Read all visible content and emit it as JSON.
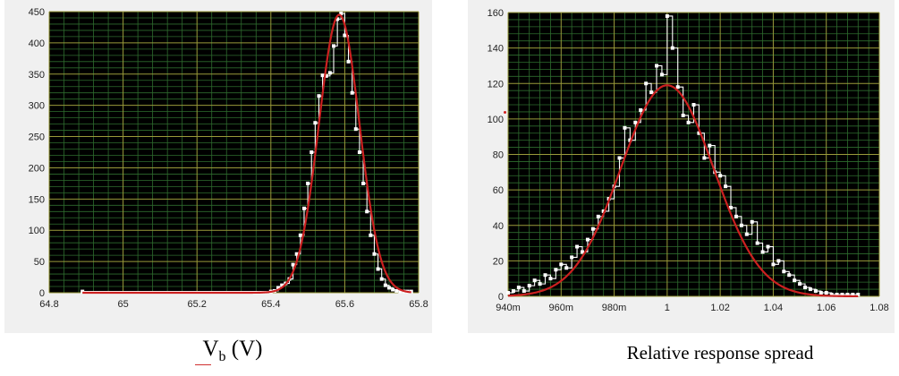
{
  "colors": {
    "plot_bg": "#000000",
    "grid_major": "#9a9a3a",
    "grid_minor": "#2e6b2e",
    "histogram": "#ffffff",
    "fit": "#cc2020",
    "axis_text": "#222222"
  },
  "captions": {
    "left_main": "V",
    "left_sub": "b",
    "left_unit": " (V)",
    "right": "Relative response spread"
  },
  "chart_data": [
    {
      "type": "histogram",
      "xlabel": "V_b (V)",
      "xlim": [
        64.8,
        65.8
      ],
      "ylim": [
        0,
        450
      ],
      "x_ticks": [
        "64.8",
        "65",
        "65.2",
        "65.4",
        "65.6",
        "65.8"
      ],
      "x_tick_values": [
        64.8,
        65.0,
        65.2,
        65.4,
        65.6,
        65.8
      ],
      "y_ticks": [
        "0",
        "50",
        "100",
        "150",
        "200",
        "250",
        "300",
        "350",
        "400",
        "450"
      ],
      "y_tick_values": [
        0,
        50,
        100,
        150,
        200,
        250,
        300,
        350,
        400,
        450
      ],
      "grid": true,
      "series": [
        {
          "kind": "histogram",
          "x": [
            64.89,
            65.4,
            65.41,
            65.42,
            65.43,
            65.44,
            65.45,
            65.46,
            65.47,
            65.48,
            65.49,
            65.5,
            65.51,
            65.52,
            65.53,
            65.54,
            65.55,
            65.56,
            65.57,
            65.58,
            65.59,
            65.6,
            65.61,
            65.62,
            65.63,
            65.64,
            65.65,
            65.66,
            65.67,
            65.68,
            65.69,
            65.7,
            65.71,
            65.72,
            65.73,
            65.74,
            65.75,
            65.76,
            65.77,
            65.78
          ],
          "y": [
            2,
            2,
            3,
            8,
            12,
            15,
            22,
            45,
            62,
            92,
            135,
            175,
            225,
            272,
            315,
            348,
            347,
            352,
            395,
            438,
            447,
            412,
            370,
            320,
            262,
            225,
            175,
            130,
            92,
            62,
            38,
            22,
            12,
            8,
            5,
            3,
            2,
            2,
            2,
            2
          ]
        },
        {
          "kind": "gaussian_fit",
          "amplitude": 445,
          "mean": 65.585,
          "sigma": 0.055,
          "x_range": [
            64.89,
            65.78
          ]
        }
      ]
    },
    {
      "type": "histogram",
      "xlabel": "Relative response spread",
      "xlim": [
        0.94,
        1.08
      ],
      "ylim": [
        0,
        160
      ],
      "x_ticks": [
        "940m",
        "960m",
        "980m",
        "1",
        "1.02",
        "1.04",
        "1.06",
        "1.08"
      ],
      "x_tick_values": [
        0.94,
        0.96,
        0.98,
        1.0,
        1.02,
        1.04,
        1.06,
        1.08
      ],
      "y_ticks": [
        "0",
        "20",
        "40",
        "60",
        "80",
        "100",
        "120",
        "140",
        "160"
      ],
      "y_tick_values": [
        0,
        20,
        40,
        60,
        80,
        100,
        120,
        140,
        160
      ],
      "grid": true,
      "series": [
        {
          "kind": "histogram",
          "x": [
            0.94,
            0.942,
            0.944,
            0.946,
            0.948,
            0.95,
            0.952,
            0.954,
            0.956,
            0.958,
            0.96,
            0.962,
            0.964,
            0.966,
            0.968,
            0.97,
            0.972,
            0.974,
            0.976,
            0.978,
            0.98,
            0.982,
            0.984,
            0.986,
            0.988,
            0.99,
            0.992,
            0.994,
            0.996,
            0.998,
            1.0,
            1.002,
            1.004,
            1.006,
            1.008,
            1.01,
            1.012,
            1.014,
            1.016,
            1.018,
            1.02,
            1.022,
            1.024,
            1.026,
            1.028,
            1.03,
            1.032,
            1.034,
            1.036,
            1.038,
            1.04,
            1.042,
            1.044,
            1.046,
            1.048,
            1.05,
            1.052,
            1.054,
            1.056,
            1.058,
            1.06,
            1.062,
            1.064,
            1.066,
            1.068,
            1.07,
            1.072
          ],
          "y": [
            2,
            3,
            5,
            3,
            6,
            9,
            7,
            12,
            10,
            15,
            18,
            16,
            22,
            28,
            25,
            32,
            38,
            45,
            48,
            55,
            62,
            78,
            95,
            88,
            98,
            105,
            120,
            115,
            130,
            125,
            158,
            140,
            118,
            102,
            98,
            108,
            92,
            78,
            85,
            70,
            68,
            62,
            50,
            45,
            40,
            35,
            42,
            30,
            25,
            28,
            18,
            20,
            14,
            12,
            9,
            7,
            5,
            4,
            3,
            2,
            2,
            1,
            1,
            1,
            1,
            1,
            1
          ]
        },
        {
          "kind": "gaussian_fit",
          "amplitude": 119,
          "mean": 1.0,
          "sigma": 0.0175,
          "x_range": [
            0.94,
            1.072
          ]
        }
      ]
    }
  ]
}
